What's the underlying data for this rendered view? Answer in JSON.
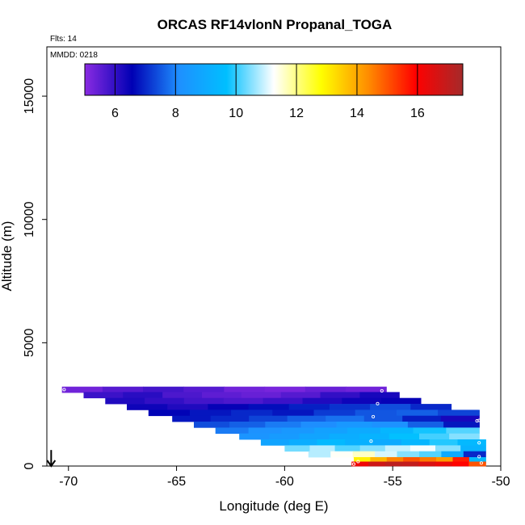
{
  "chart_data": {
    "type": "heatmap",
    "title": "ORCAS RF14vlonN Propanal_TOGA",
    "flights_label": "Flts: 14",
    "date_label": "MMDD: 0218",
    "xlabel": "Longitude (deg E)",
    "ylabel": "Altitude (m)",
    "xlim": [
      -71,
      -50
    ],
    "ylim": [
      0,
      17000
    ],
    "xticks": [
      -70,
      -65,
      -60,
      -55,
      -50
    ],
    "yticks": [
      0,
      5000,
      10000,
      15000
    ],
    "xtick_labels": [
      "-70",
      "-65",
      "-60",
      "-55",
      "-50"
    ],
    "ytick_labels": [
      "0",
      "5000",
      "10000",
      "15000"
    ],
    "colorbar": {
      "range": [
        5,
        17.5
      ],
      "ticks": [
        6,
        8,
        10,
        12,
        14,
        16
      ],
      "tick_labels": [
        "6",
        "8",
        "10",
        "12",
        "14",
        "16"
      ],
      "colors": [
        "#8a2be2",
        "#0000b4",
        "#1e90ff",
        "#00bfff",
        "#ffffff",
        "#ffff00",
        "#ff8c00",
        "#ff0000",
        "#a52a2a"
      ]
    },
    "bands": [
      {
        "alt": 3100,
        "lon_start": -70.3,
        "lon_end": -55.3,
        "values": [
          5.3,
          5.6,
          5.8,
          5.6,
          5.3,
          5.2,
          5.4,
          5.3
        ]
      },
      {
        "alt": 2880,
        "lon_start": -69.3,
        "lon_end": -54.7,
        "values": [
          5.9,
          6.1,
          5.7,
          5.5,
          5.4,
          5.6,
          6.0,
          6.3
        ]
      },
      {
        "alt": 2640,
        "lon_start": -68.3,
        "lon_end": -53.7,
        "values": [
          6.2,
          6.0,
          5.8,
          5.7,
          5.9,
          6.2,
          6.4,
          6.5
        ]
      },
      {
        "alt": 2400,
        "lon_start": -67.3,
        "lon_end": -52.3,
        "values": [
          6.4,
          6.2,
          6.5,
          6.7,
          6.9,
          7.1,
          7.4,
          7.0
        ]
      },
      {
        "alt": 2160,
        "lon_start": -66.3,
        "lon_end": -51.0,
        "values": [
          6.6,
          6.8,
          7.0,
          6.8,
          7.2,
          7.5,
          7.6,
          7.3
        ]
      },
      {
        "alt": 1920,
        "lon_start": -65.2,
        "lon_end": -51.0,
        "values": [
          6.8,
          7.0,
          7.3,
          7.6,
          7.8,
          7.5,
          6.9,
          6.3
        ]
      },
      {
        "alt": 1680,
        "lon_start": -64.2,
        "lon_end": -51.0,
        "values": [
          7.4,
          7.6,
          7.9,
          8.1,
          8.4,
          8.2,
          7.6,
          6.8
        ]
      },
      {
        "alt": 1440,
        "lon_start": -63.2,
        "lon_end": -51.0,
        "values": [
          7.9,
          8.2,
          8.4,
          8.7,
          9.0,
          9.4,
          9.8,
          10.2
        ]
      },
      {
        "alt": 1200,
        "lon_start": -62.1,
        "lon_end": -51.0,
        "values": [
          8.3,
          8.5,
          8.8,
          9.1,
          9.3,
          9.7,
          10.1,
          10.5
        ]
      },
      {
        "alt": 960,
        "lon_start": -61.1,
        "lon_end": -50.7,
        "values": [
          8.8,
          9.1,
          9.5,
          9.2,
          9.0,
          9.4,
          9.9,
          9.5
        ]
      },
      {
        "alt": 720,
        "lon_start": -60.0,
        "lon_end": -50.7,
        "values": [
          10.4,
          10.8,
          10.2,
          10.5,
          10.9,
          11.2,
          10.5,
          9.3
        ]
      },
      {
        "alt": 480,
        "lon_start": -58.9,
        "lon_end": -50.7,
        "values": [
          10.8,
          11.3,
          11.6,
          11.0,
          10.5,
          10.2,
          9.0,
          7.0
        ]
      },
      {
        "alt": 240,
        "lon_start": -56.8,
        "lon_end": -50.7,
        "values": [
          13.0,
          13.8,
          14.5,
          15.0,
          14.6,
          14.2,
          15.6,
          9.5
        ]
      },
      {
        "alt": 60,
        "lon_start": -56.9,
        "lon_end": -50.7,
        "values": [
          16.2,
          16.8,
          17.1,
          17.0,
          16.6,
          16.3,
          15.9,
          15.0
        ]
      }
    ],
    "sample_points": [
      {
        "lon": -70.2,
        "alt": 3100
      },
      {
        "lon": -55.5,
        "alt": 3050
      },
      {
        "lon": -55.7,
        "alt": 2530
      },
      {
        "lon": -55.9,
        "alt": 2000
      },
      {
        "lon": -56.0,
        "alt": 1010
      },
      {
        "lon": -51.0,
        "alt": 2350
      },
      {
        "lon": -51.0,
        "alt": 1850
      },
      {
        "lon": -51.1,
        "alt": 1830
      },
      {
        "lon": -51.0,
        "alt": 940
      },
      {
        "lon": -51.0,
        "alt": 380
      },
      {
        "lon": -50.9,
        "alt": 120
      },
      {
        "lon": -56.6,
        "alt": 180
      },
      {
        "lon": -56.8,
        "alt": 80
      }
    ],
    "arrow_marker": {
      "lon": -70.8,
      "alt_from": 650,
      "alt_to": 0
    }
  }
}
